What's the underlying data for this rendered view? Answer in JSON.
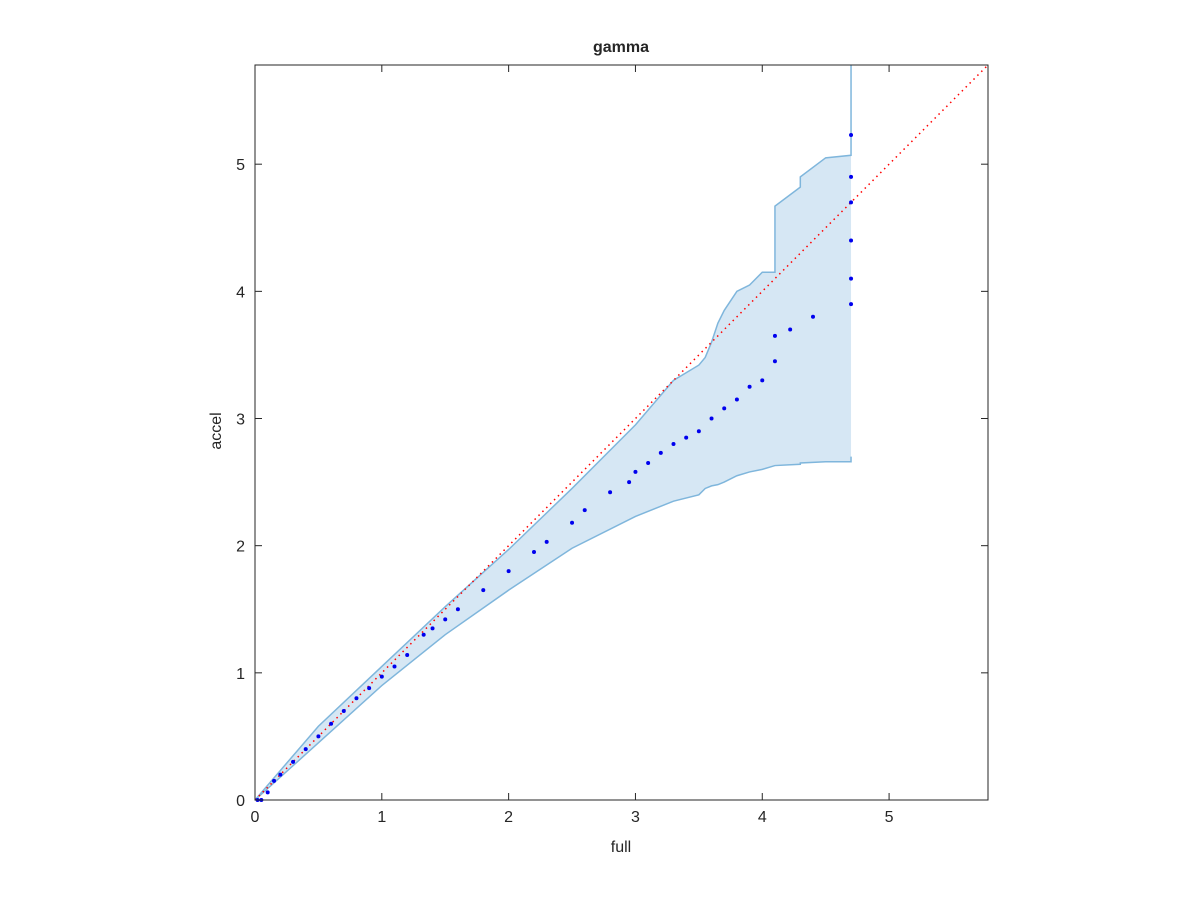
{
  "chart_data": {
    "type": "scatter",
    "title": "gamma",
    "xlabel": "full",
    "ylabel": "accel",
    "xlim": [
      0,
      5.78
    ],
    "ylim": [
      0,
      5.78
    ],
    "xticks": [
      0,
      1,
      2,
      3,
      4,
      5
    ],
    "yticks": [
      0,
      1,
      2,
      3,
      4,
      5
    ],
    "series": [
      {
        "color": "#0000ee",
        "x": [
          0.02,
          0.05,
          0.1,
          0.15,
          0.2,
          0.3,
          0.4,
          0.5,
          0.6,
          0.7,
          0.8,
          0.9,
          1.0,
          1.1,
          1.2,
          1.33,
          1.4,
          1.5,
          1.6,
          1.8,
          2.0,
          2.2,
          2.3,
          2.5,
          2.6,
          2.8,
          2.95,
          3.0,
          3.1,
          3.2,
          3.3,
          3.4,
          3.5,
          3.6,
          3.7,
          3.8,
          3.9,
          4.0,
          4.1,
          4.1,
          4.22,
          4.4,
          4.7,
          4.7,
          4.7,
          4.7,
          4.7,
          4.7
        ],
        "values": [
          0.0,
          0.0,
          0.06,
          0.15,
          0.2,
          0.3,
          0.4,
          0.5,
          0.6,
          0.7,
          0.8,
          0.88,
          0.97,
          1.05,
          1.14,
          1.3,
          1.35,
          1.42,
          1.5,
          1.65,
          1.8,
          1.95,
          2.03,
          2.18,
          2.28,
          2.42,
          2.5,
          2.58,
          2.65,
          2.73,
          2.8,
          2.85,
          2.9,
          3.0,
          3.08,
          3.15,
          3.25,
          3.3,
          3.45,
          3.65,
          3.7,
          3.8,
          3.9,
          4.1,
          4.4,
          4.7,
          4.9,
          5.23
        ]
      }
    ],
    "band": {
      "color": "#d6e7f4",
      "edge_color": "#7fb6dc",
      "x": [
        0,
        0.5,
        1,
        1.5,
        2,
        2.5,
        3,
        3.3,
        3.5,
        3.55,
        3.6,
        3.65,
        3.7,
        3.8,
        3.9,
        4.0,
        4.1,
        4.1,
        4.3,
        4.3,
        4.5,
        4.7,
        4.7
      ],
      "upper": [
        0,
        0.58,
        1.05,
        1.52,
        1.97,
        2.45,
        2.95,
        3.3,
        3.42,
        3.48,
        3.6,
        3.75,
        3.85,
        4.0,
        4.05,
        4.15,
        4.15,
        4.67,
        4.82,
        4.9,
        5.05,
        5.07,
        5.78
      ],
      "lower": [
        0,
        0.45,
        0.9,
        1.3,
        1.65,
        1.98,
        2.23,
        2.35,
        2.4,
        2.45,
        2.47,
        2.48,
        2.5,
        2.55,
        2.58,
        2.6,
        2.63,
        2.63,
        2.64,
        2.65,
        2.66,
        2.66,
        2.7
      ]
    },
    "reference_line": {
      "color": "#ff0000",
      "x": [
        0,
        5.78
      ],
      "y": [
        0,
        5.78
      ]
    }
  }
}
